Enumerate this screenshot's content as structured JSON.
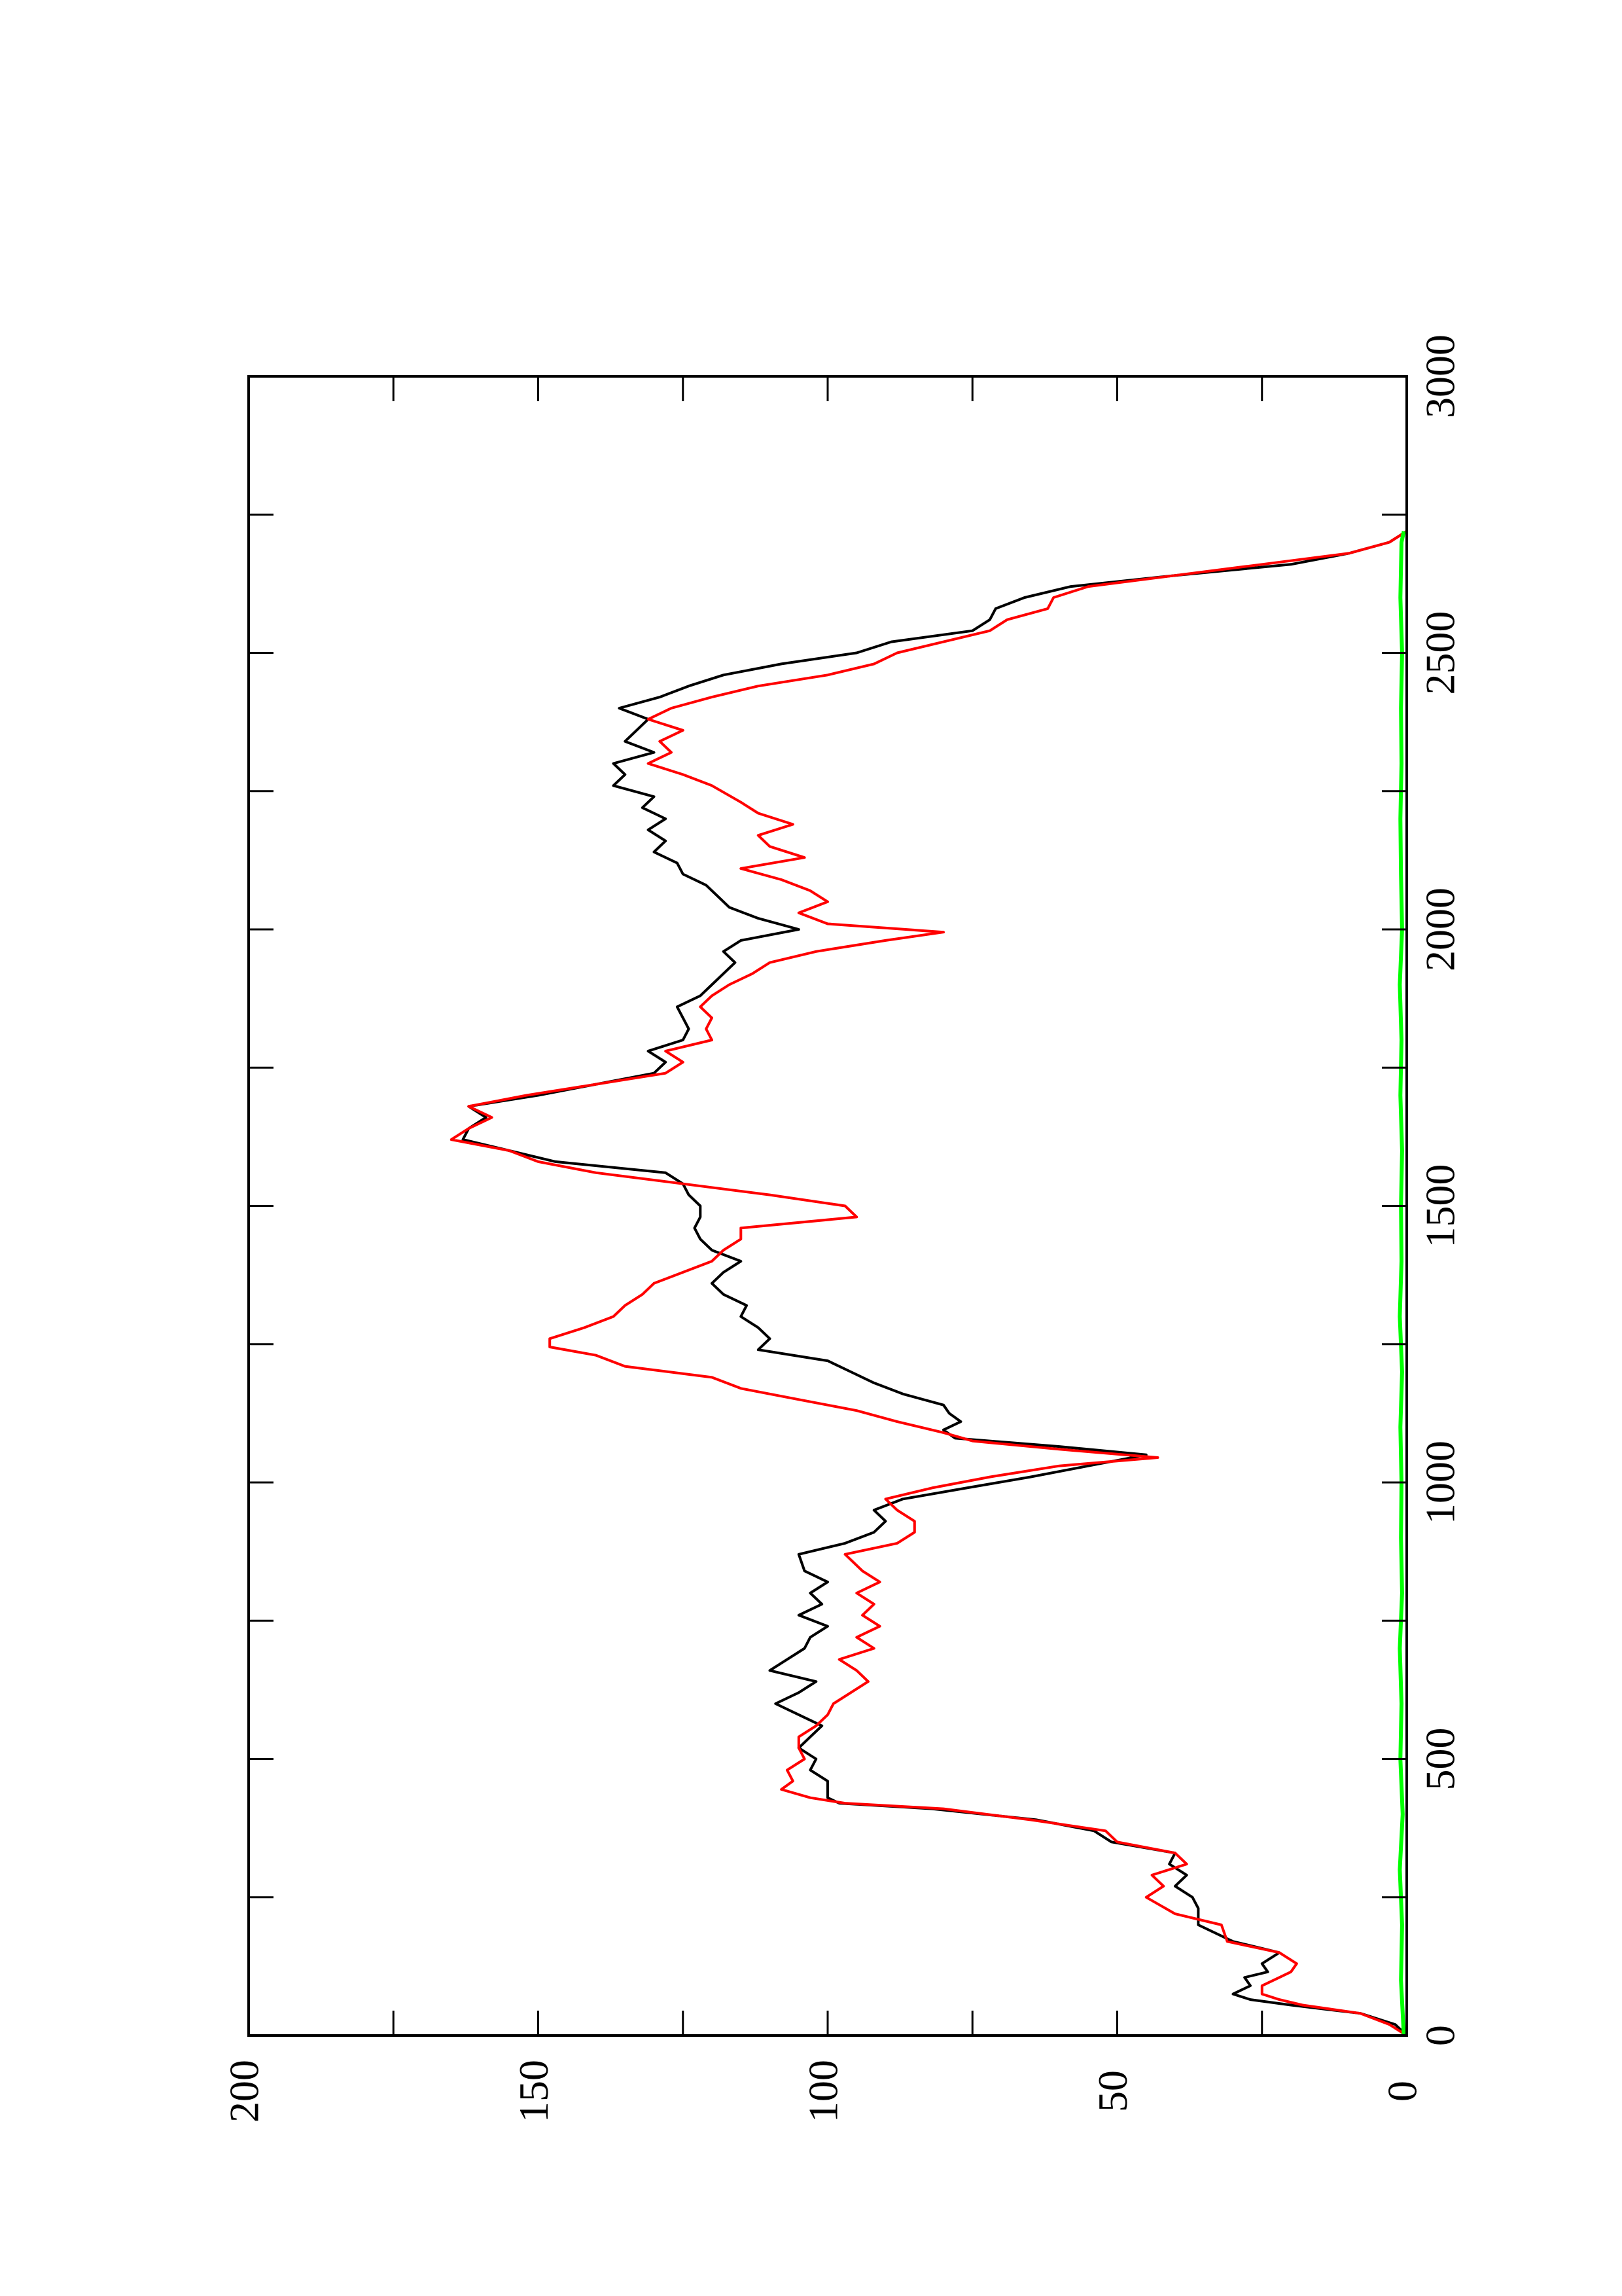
{
  "chart_data": {
    "type": "line",
    "orientation": "rotated-90-ccw",
    "title": "",
    "xlabel": "",
    "ylabel": "",
    "xlim": [
      0,
      3000
    ],
    "ylim": [
      0,
      200
    ],
    "x_ticks": [
      "0",
      "500",
      "1000",
      "1500",
      "2000",
      "2500",
      "3000"
    ],
    "y_ticks": [
      "0",
      "50",
      "100",
      "150",
      "200"
    ],
    "grid": false,
    "legend": "none",
    "series": [
      {
        "color": "#000000",
        "points": [
          [
            0,
            0
          ],
          [
            20,
            2
          ],
          [
            40,
            8
          ],
          [
            55,
            20
          ],
          [
            65,
            27
          ],
          [
            75,
            30
          ],
          [
            90,
            27
          ],
          [
            105,
            28
          ],
          [
            115,
            24
          ],
          [
            130,
            25
          ],
          [
            150,
            22
          ],
          [
            170,
            30
          ],
          [
            200,
            36
          ],
          [
            230,
            36
          ],
          [
            250,
            37
          ],
          [
            270,
            40
          ],
          [
            290,
            38
          ],
          [
            310,
            41
          ],
          [
            330,
            40
          ],
          [
            350,
            51
          ],
          [
            370,
            54
          ],
          [
            390,
            64
          ],
          [
            410,
            82
          ],
          [
            420,
            98
          ],
          [
            430,
            100
          ],
          [
            445,
            100
          ],
          [
            460,
            100
          ],
          [
            480,
            103
          ],
          [
            500,
            102
          ],
          [
            520,
            105
          ],
          [
            540,
            103
          ],
          [
            560,
            101
          ],
          [
            580,
            105
          ],
          [
            600,
            109
          ],
          [
            620,
            105
          ],
          [
            640,
            102
          ],
          [
            660,
            110
          ],
          [
            680,
            107
          ],
          [
            700,
            104
          ],
          [
            720,
            103
          ],
          [
            740,
            100
          ],
          [
            760,
            105
          ],
          [
            780,
            101
          ],
          [
            800,
            103
          ],
          [
            820,
            100
          ],
          [
            840,
            104
          ],
          [
            870,
            105
          ],
          [
            890,
            97
          ],
          [
            910,
            92
          ],
          [
            930,
            90
          ],
          [
            950,
            92
          ],
          [
            970,
            87
          ],
          [
            990,
            76
          ],
          [
            1010,
            65
          ],
          [
            1030,
            55
          ],
          [
            1050,
            45
          ],
          [
            1065,
            60
          ],
          [
            1080,
            78
          ],
          [
            1095,
            80
          ],
          [
            1110,
            77
          ],
          [
            1125,
            79
          ],
          [
            1140,
            80
          ],
          [
            1160,
            87
          ],
          [
            1180,
            92
          ],
          [
            1200,
            96
          ],
          [
            1220,
            100
          ],
          [
            1240,
            112
          ],
          [
            1260,
            110
          ],
          [
            1280,
            112
          ],
          [
            1300,
            115
          ],
          [
            1320,
            114
          ],
          [
            1340,
            118
          ],
          [
            1360,
            120
          ],
          [
            1380,
            118
          ],
          [
            1400,
            115
          ],
          [
            1420,
            120
          ],
          [
            1440,
            122
          ],
          [
            1460,
            123
          ],
          [
            1480,
            122
          ],
          [
            1500,
            122
          ],
          [
            1520,
            124
          ],
          [
            1540,
            125
          ],
          [
            1560,
            128
          ],
          [
            1580,
            147
          ],
          [
            1600,
            155
          ],
          [
            1620,
            163
          ],
          [
            1640,
            162
          ],
          [
            1660,
            159
          ],
          [
            1680,
            162
          ],
          [
            1700,
            150
          ],
          [
            1720,
            140
          ],
          [
            1740,
            130
          ],
          [
            1760,
            128
          ],
          [
            1780,
            131
          ],
          [
            1800,
            125
          ],
          [
            1820,
            124
          ],
          [
            1840,
            125
          ],
          [
            1860,
            126
          ],
          [
            1880,
            122
          ],
          [
            1900,
            120
          ],
          [
            1920,
            118
          ],
          [
            1940,
            116
          ],
          [
            1960,
            118
          ],
          [
            1980,
            115
          ],
          [
            2000,
            105
          ],
          [
            2020,
            112
          ],
          [
            2040,
            117
          ],
          [
            2060,
            119
          ],
          [
            2080,
            121
          ],
          [
            2100,
            125
          ],
          [
            2120,
            126
          ],
          [
            2140,
            130
          ],
          [
            2160,
            128
          ],
          [
            2180,
            131
          ],
          [
            2200,
            128
          ],
          [
            2220,
            132
          ],
          [
            2240,
            130
          ],
          [
            2260,
            137
          ],
          [
            2280,
            135
          ],
          [
            2300,
            137
          ],
          [
            2320,
            130
          ],
          [
            2340,
            135
          ],
          [
            2360,
            133
          ],
          [
            2380,
            131
          ],
          [
            2400,
            136
          ],
          [
            2420,
            129
          ],
          [
            2440,
            124
          ],
          [
            2460,
            118
          ],
          [
            2480,
            108
          ],
          [
            2500,
            95
          ],
          [
            2520,
            89
          ],
          [
            2540,
            75
          ],
          [
            2560,
            72
          ],
          [
            2580,
            71
          ],
          [
            2600,
            66
          ],
          [
            2620,
            58
          ],
          [
            2640,
            40
          ],
          [
            2660,
            20
          ],
          [
            2680,
            10
          ],
          [
            2700,
            3
          ],
          [
            2720,
            0
          ]
        ]
      },
      {
        "color": "#ff0000",
        "points": [
          [
            0,
            0
          ],
          [
            20,
            3
          ],
          [
            40,
            8
          ],
          [
            55,
            18
          ],
          [
            65,
            22
          ],
          [
            75,
            25
          ],
          [
            90,
            25
          ],
          [
            105,
            22
          ],
          [
            115,
            20
          ],
          [
            130,
            19
          ],
          [
            150,
            22
          ],
          [
            170,
            31
          ],
          [
            200,
            32
          ],
          [
            220,
            40
          ],
          [
            250,
            45
          ],
          [
            270,
            42
          ],
          [
            290,
            44
          ],
          [
            310,
            38
          ],
          [
            330,
            40
          ],
          [
            350,
            50
          ],
          [
            370,
            52
          ],
          [
            390,
            65
          ],
          [
            410,
            80
          ],
          [
            420,
            97
          ],
          [
            430,
            103
          ],
          [
            445,
            108
          ],
          [
            460,
            106
          ],
          [
            480,
            107
          ],
          [
            500,
            104
          ],
          [
            520,
            105
          ],
          [
            540,
            105
          ],
          [
            560,
            102
          ],
          [
            580,
            100
          ],
          [
            600,
            99
          ],
          [
            620,
            96
          ],
          [
            640,
            93
          ],
          [
            660,
            95
          ],
          [
            680,
            98
          ],
          [
            700,
            92
          ],
          [
            720,
            95
          ],
          [
            740,
            91
          ],
          [
            760,
            94
          ],
          [
            780,
            92
          ],
          [
            800,
            95
          ],
          [
            820,
            91
          ],
          [
            840,
            94
          ],
          [
            870,
            97
          ],
          [
            890,
            88
          ],
          [
            910,
            85
          ],
          [
            930,
            85
          ],
          [
            950,
            88
          ],
          [
            970,
            90
          ],
          [
            990,
            82
          ],
          [
            1010,
            72
          ],
          [
            1030,
            60
          ],
          [
            1045,
            43
          ],
          [
            1060,
            60
          ],
          [
            1075,
            75
          ],
          [
            1090,
            80
          ],
          [
            1110,
            88
          ],
          [
            1130,
            95
          ],
          [
            1150,
            105
          ],
          [
            1170,
            115
          ],
          [
            1190,
            120
          ],
          [
            1210,
            135
          ],
          [
            1230,
            140
          ],
          [
            1245,
            148
          ],
          [
            1260,
            148
          ],
          [
            1280,
            142
          ],
          [
            1300,
            137
          ],
          [
            1320,
            135
          ],
          [
            1340,
            132
          ],
          [
            1360,
            130
          ],
          [
            1380,
            125
          ],
          [
            1400,
            120
          ],
          [
            1420,
            118
          ],
          [
            1440,
            115
          ],
          [
            1460,
            115
          ],
          [
            1480,
            95
          ],
          [
            1500,
            97
          ],
          [
            1520,
            110
          ],
          [
            1540,
            125
          ],
          [
            1560,
            140
          ],
          [
            1580,
            150
          ],
          [
            1600,
            155
          ],
          [
            1620,
            165
          ],
          [
            1640,
            162
          ],
          [
            1660,
            158
          ],
          [
            1680,
            162
          ],
          [
            1700,
            152
          ],
          [
            1720,
            140
          ],
          [
            1740,
            128
          ],
          [
            1760,
            125
          ],
          [
            1780,
            128
          ],
          [
            1800,
            120
          ],
          [
            1820,
            121
          ],
          [
            1840,
            120
          ],
          [
            1860,
            122
          ],
          [
            1880,
            120
          ],
          [
            1900,
            117
          ],
          [
            1920,
            113
          ],
          [
            1940,
            110
          ],
          [
            1960,
            102
          ],
          [
            1980,
            90
          ],
          [
            1995,
            80
          ],
          [
            2010,
            100
          ],
          [
            2030,
            105
          ],
          [
            2050,
            100
          ],
          [
            2070,
            103
          ],
          [
            2090,
            108
          ],
          [
            2110,
            115
          ],
          [
            2130,
            104
          ],
          [
            2150,
            110
          ],
          [
            2170,
            112
          ],
          [
            2190,
            106
          ],
          [
            2210,
            112
          ],
          [
            2230,
            115
          ],
          [
            2260,
            120
          ],
          [
            2280,
            125
          ],
          [
            2300,
            131
          ],
          [
            2320,
            127
          ],
          [
            2340,
            129
          ],
          [
            2360,
            125
          ],
          [
            2380,
            131
          ],
          [
            2400,
            127
          ],
          [
            2420,
            120
          ],
          [
            2440,
            112
          ],
          [
            2460,
            100
          ],
          [
            2480,
            92
          ],
          [
            2500,
            88
          ],
          [
            2520,
            80
          ],
          [
            2540,
            72
          ],
          [
            2560,
            69
          ],
          [
            2580,
            62
          ],
          [
            2600,
            61
          ],
          [
            2620,
            55
          ],
          [
            2640,
            40
          ],
          [
            2660,
            25
          ],
          [
            2680,
            10
          ],
          [
            2700,
            3
          ],
          [
            2720,
            0
          ]
        ]
      },
      {
        "color": "#00ff00",
        "points": [
          [
            0,
            0.5
          ],
          [
            100,
            1.0
          ],
          [
            200,
            0.8
          ],
          [
            300,
            1.2
          ],
          [
            400,
            0.7
          ],
          [
            500,
            1.1
          ],
          [
            600,
            0.9
          ],
          [
            700,
            1.2
          ],
          [
            800,
            0.8
          ],
          [
            900,
            1.0
          ],
          [
            1000,
            0.9
          ],
          [
            1100,
            1.1
          ],
          [
            1200,
            0.8
          ],
          [
            1300,
            1.2
          ],
          [
            1400,
            0.9
          ],
          [
            1500,
            1.0
          ],
          [
            1600,
            0.8
          ],
          [
            1700,
            1.1
          ],
          [
            1800,
            0.9
          ],
          [
            1900,
            1.2
          ],
          [
            2000,
            0.8
          ],
          [
            2100,
            1.0
          ],
          [
            2200,
            1.1
          ],
          [
            2300,
            0.9
          ],
          [
            2400,
            1.0
          ],
          [
            2500,
            0.8
          ],
          [
            2600,
            1.1
          ],
          [
            2700,
            0.9
          ],
          [
            2720,
            0.5
          ]
        ]
      }
    ]
  }
}
